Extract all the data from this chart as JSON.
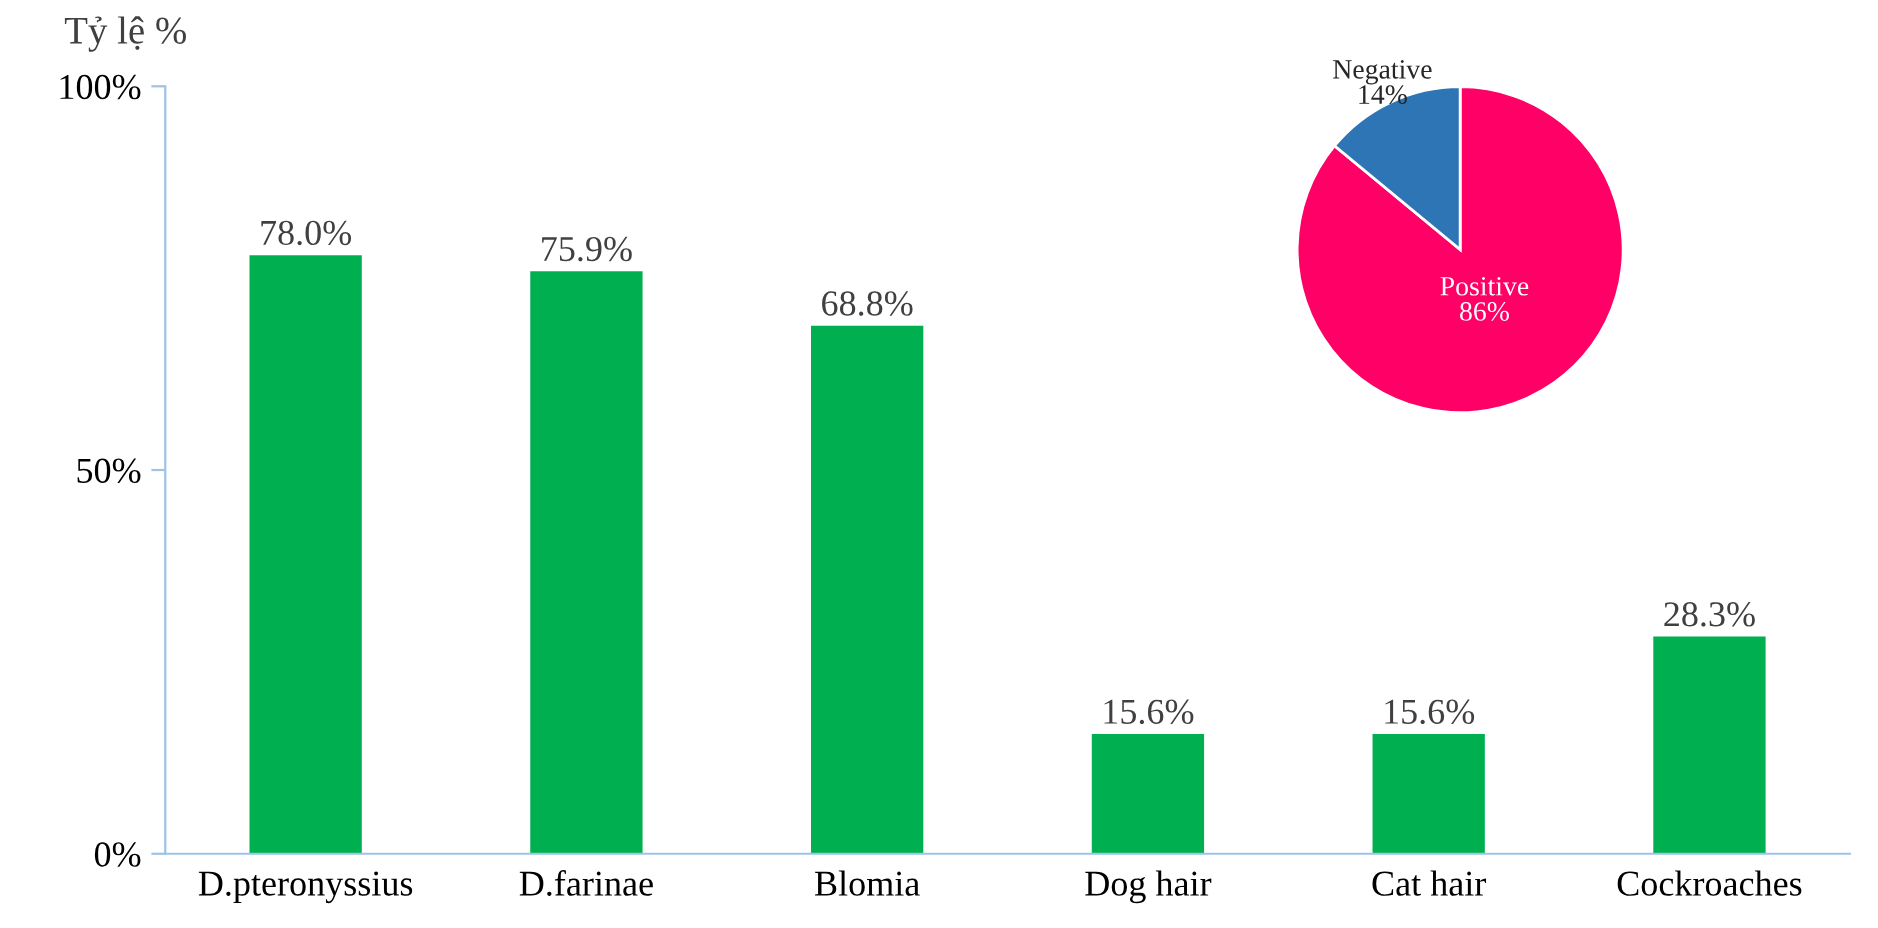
{
  "chart_data": [
    {
      "type": "bar",
      "ylabel": "Tỷ lệ %",
      "categories": [
        "D.pteronyssius",
        "D.farinae",
        "Blomia",
        "Dog hair",
        "Cat hair",
        "Cockroaches"
      ],
      "values": [
        78.0,
        75.9,
        68.8,
        15.6,
        15.6,
        28.3
      ],
      "color": "#00b050",
      "value_labels": [
        "78.0%",
        "75.9%",
        "68.8%",
        "15.6%",
        "15.6%",
        "28.3%"
      ],
      "ylim": [
        0,
        100
      ],
      "yticks": [
        {
          "value": 0,
          "label": "0%"
        },
        {
          "value": 50,
          "label": "50%"
        },
        {
          "value": 100,
          "label": "100%"
        }
      ],
      "grid": false
    },
    {
      "type": "pie",
      "categories": [
        "Positive",
        "Negative"
      ],
      "values": [
        86,
        14
      ],
      "colors": [
        "#ff0066",
        "#2e75b6"
      ],
      "value_labels": [
        "86%",
        "14%"
      ]
    }
  ]
}
